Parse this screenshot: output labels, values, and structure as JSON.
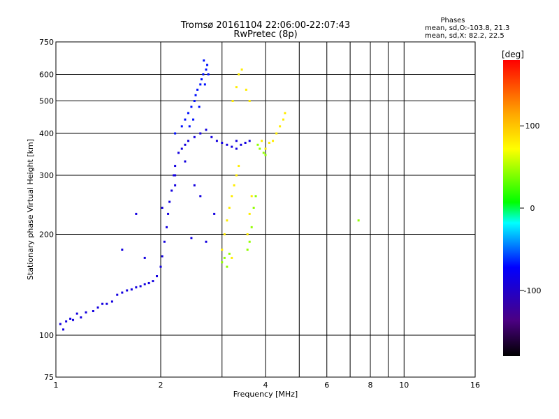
{
  "chart_data": {
    "type": "scatter",
    "title": "Tromsø 20161104 22:06:00-22:07:43",
    "subtitle": "RwPretec (8p)",
    "phase_stats": {
      "heading": "Phases",
      "line_o": "mean, sd,O:-103.8, 21.3",
      "line_x": "mean, sd,X: 82.2, 22.5"
    },
    "xlabel": "Frequency [MHz]",
    "ylabel": "Stationary phase Virtual Height [km]",
    "x_scale": "log",
    "y_scale": "log",
    "xlim": [
      1,
      16
    ],
    "ylim": [
      75,
      750
    ],
    "x_ticks": [
      1,
      2,
      4,
      6,
      8,
      10,
      16
    ],
    "x_grid": [
      2,
      3,
      4,
      5,
      6,
      7,
      8,
      9,
      10,
      16
    ],
    "y_ticks": [
      75,
      100,
      200,
      300,
      400,
      500,
      600,
      750
    ],
    "y_grid": [
      100,
      200,
      300,
      400,
      500,
      600
    ],
    "grid": true,
    "colorbar": {
      "label": "[deg]",
      "range": [
        -180,
        180
      ],
      "ticks": [
        100,
        0,
        -100
      ],
      "colormap": "rainbow (black-purple-blue-cyan-green-yellow-red)"
    },
    "series": [
      {
        "phase_deg": -110,
        "points": [
          [
            1.03,
            108
          ],
          [
            1.05,
            104
          ],
          [
            1.07,
            110
          ],
          [
            1.1,
            112
          ],
          [
            1.12,
            111
          ],
          [
            1.15,
            116
          ],
          [
            1.18,
            113
          ],
          [
            1.22,
            117
          ],
          [
            1.28,
            118
          ],
          [
            1.32,
            121
          ],
          [
            1.36,
            124
          ],
          [
            1.4,
            124
          ],
          [
            1.45,
            126
          ],
          [
            1.5,
            132
          ],
          [
            1.55,
            134
          ],
          [
            1.6,
            136
          ],
          [
            1.65,
            137
          ],
          [
            1.7,
            139
          ],
          [
            1.75,
            140
          ],
          [
            1.8,
            142
          ],
          [
            1.85,
            143
          ],
          [
            1.9,
            145
          ],
          [
            1.95,
            150
          ],
          [
            2.0,
            160
          ],
          [
            2.02,
            172
          ],
          [
            2.05,
            190
          ],
          [
            2.08,
            210
          ],
          [
            2.1,
            230
          ],
          [
            2.12,
            250
          ],
          [
            2.15,
            270
          ],
          [
            2.18,
            300
          ],
          [
            2.2,
            320
          ],
          [
            2.25,
            350
          ],
          [
            2.3,
            360
          ],
          [
            2.35,
            370
          ],
          [
            2.4,
            380
          ],
          [
            2.5,
            390
          ],
          [
            2.6,
            400
          ],
          [
            2.7,
            410
          ],
          [
            2.8,
            390
          ],
          [
            2.9,
            380
          ],
          [
            3.0,
            375
          ],
          [
            3.1,
            370
          ],
          [
            3.2,
            365
          ],
          [
            3.3,
            360
          ],
          [
            3.4,
            370
          ],
          [
            3.5,
            375
          ],
          [
            1.55,
            180
          ],
          [
            1.7,
            230
          ],
          [
            1.8,
            170
          ],
          [
            2.02,
            240
          ],
          [
            2.2,
            300
          ],
          [
            2.35,
            330
          ],
          [
            2.5,
            280
          ],
          [
            2.6,
            260
          ],
          [
            2.45,
            195
          ],
          [
            2.7,
            190
          ],
          [
            2.85,
            230
          ],
          [
            3.3,
            380
          ],
          [
            3.6,
            380
          ],
          [
            2.2,
            280
          ]
        ]
      },
      {
        "phase_deg": -95,
        "points": [
          [
            2.2,
            400
          ],
          [
            2.3,
            420
          ],
          [
            2.35,
            440
          ],
          [
            2.4,
            460
          ],
          [
            2.45,
            480
          ],
          [
            2.5,
            500
          ],
          [
            2.52,
            520
          ],
          [
            2.55,
            540
          ],
          [
            2.6,
            560
          ],
          [
            2.62,
            580
          ],
          [
            2.65,
            600
          ],
          [
            2.7,
            620
          ],
          [
            2.72,
            640
          ],
          [
            2.68,
            560
          ],
          [
            2.58,
            480
          ],
          [
            2.48,
            440
          ],
          [
            2.42,
            420
          ],
          [
            2.74,
            600
          ],
          [
            2.66,
            660
          ]
        ]
      },
      {
        "phase_deg": 80,
        "points": [
          [
            3.05,
            200
          ],
          [
            3.1,
            220
          ],
          [
            3.15,
            240
          ],
          [
            3.2,
            260
          ],
          [
            3.25,
            280
          ],
          [
            3.3,
            300
          ],
          [
            3.35,
            320
          ],
          [
            3.55,
            200
          ],
          [
            3.6,
            230
          ],
          [
            3.65,
            260
          ],
          [
            3.22,
            500
          ],
          [
            3.3,
            550
          ],
          [
            3.35,
            600
          ],
          [
            3.42,
            620
          ],
          [
            3.52,
            540
          ],
          [
            3.6,
            500
          ],
          [
            4.2,
            380
          ],
          [
            4.3,
            400
          ],
          [
            4.4,
            420
          ],
          [
            4.5,
            440
          ],
          [
            4.55,
            460
          ],
          [
            3.0,
            180
          ],
          [
            3.2,
            170
          ],
          [
            3.9,
            380
          ],
          [
            4.0,
            360
          ],
          [
            4.1,
            375
          ]
        ]
      },
      {
        "phase_deg": 40,
        "points": [
          [
            3.0,
            165
          ],
          [
            3.05,
            170
          ],
          [
            3.1,
            160
          ],
          [
            3.15,
            175
          ],
          [
            3.55,
            180
          ],
          [
            3.6,
            190
          ],
          [
            3.65,
            210
          ],
          [
            3.7,
            240
          ],
          [
            3.75,
            260
          ],
          [
            3.8,
            370
          ],
          [
            3.85,
            360
          ],
          [
            3.95,
            350
          ],
          [
            4.0,
            345
          ],
          [
            7.4,
            220
          ]
        ]
      }
    ]
  }
}
